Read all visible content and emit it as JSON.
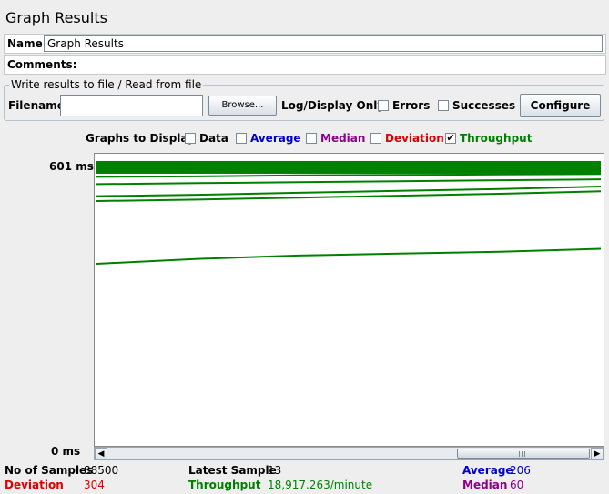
{
  "window": {
    "title": "Graph Results"
  },
  "name_field": {
    "label": "Name:",
    "value": "Graph Results"
  },
  "comments_field": {
    "label": "Comments:"
  },
  "file_panel": {
    "legend": "Write results to file / Read from file",
    "filename_label": "Filename",
    "filename_value": "",
    "browse_label": "Browse...",
    "log_display_label": "Log/Display Only:",
    "errors_label": "Errors",
    "successes_label": "Successes",
    "configure_label": "Configure"
  },
  "graphs_to_display": {
    "label": "Graphs to Display",
    "options": [
      {
        "label": "Data",
        "checked": false,
        "color": "#000000"
      },
      {
        "label": "Average",
        "checked": false,
        "color": "#0000cc"
      },
      {
        "label": "Median",
        "checked": false,
        "color": "#8b008b"
      },
      {
        "label": "Deviation",
        "checked": false,
        "color": "#dd0000"
      },
      {
        "label": "Throughput",
        "checked": true,
        "color": "#008000"
      }
    ]
  },
  "graph": {
    "y_max_label": "601  ms",
    "y_min_label": "0  ms",
    "line_color": "#008000"
  },
  "chart_data": {
    "type": "line",
    "ylim": [
      0,
      601
    ],
    "ytick_labels": [
      "0  ms",
      "601  ms"
    ],
    "series": [
      {
        "values": [
          580,
          581,
          583,
          584,
          585,
          586
        ]
      },
      {
        "values": [
          565,
          566,
          567,
          568,
          569,
          570
        ]
      },
      {
        "values": [
          555,
          556,
          558,
          559,
          560,
          561
        ]
      },
      {
        "values": [
          540,
          542,
          544,
          546,
          548,
          550
        ]
      },
      {
        "values": [
          515,
          518,
          522,
          526,
          530,
          535
        ]
      },
      {
        "values": [
          505,
          508,
          512,
          516,
          520,
          525
        ]
      },
      {
        "values": [
          375,
          385,
          392,
          396,
          400,
          406
        ]
      }
    ]
  },
  "stats": {
    "samples": {
      "label": "No of Samples",
      "value": "88500",
      "color": "#000000"
    },
    "deviation": {
      "label": "Deviation",
      "value": "304",
      "color": "#dd0000"
    },
    "latest": {
      "label": "Latest Sample",
      "value": "13",
      "color": "#000000"
    },
    "throughput": {
      "label": "Throughput",
      "value": "18,917.263/minute",
      "color": "#008000"
    },
    "average": {
      "label": "Average",
      "value": "206",
      "color": "#0000cc"
    },
    "median": {
      "label": "Median",
      "value": "60",
      "color": "#8b008b"
    }
  }
}
